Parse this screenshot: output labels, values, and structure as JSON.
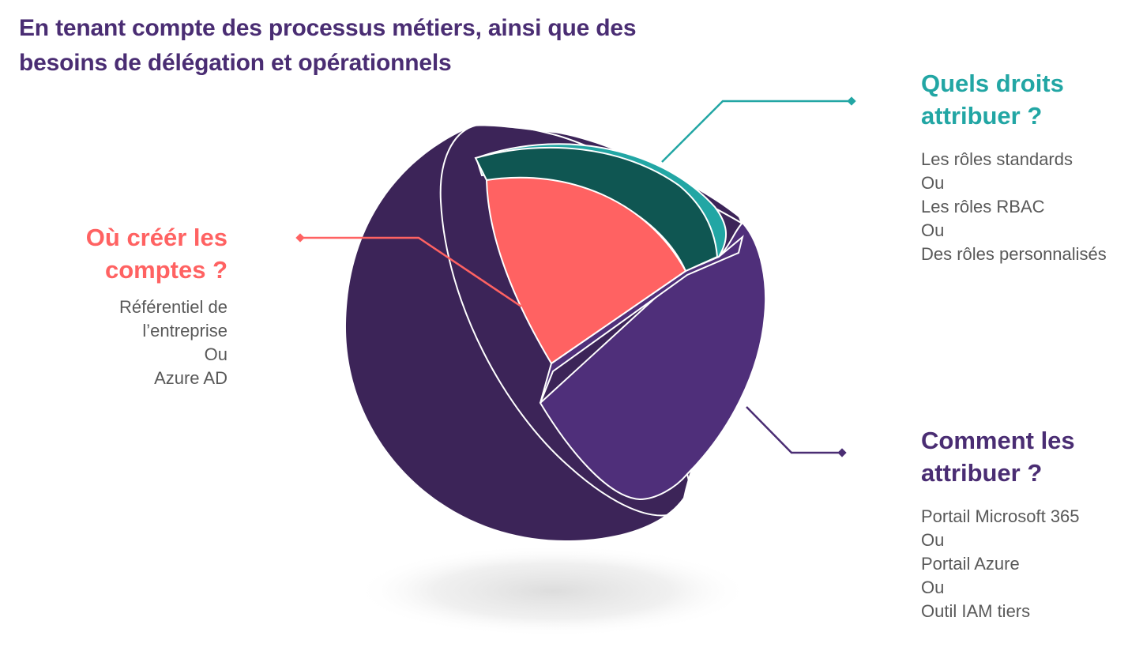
{
  "headline": {
    "line1": "En tenant compte des processus métiers, ainsi que des",
    "line2": "besoins de délégation et opérationnels"
  },
  "sections": {
    "accounts": {
      "title_line1": "Où créér les",
      "title_line2": "comptes ?",
      "options": [
        "Référentiel de",
        "l’entreprise",
        "Ou",
        "Azure AD"
      ]
    },
    "rights": {
      "title_line1": "Quels droits",
      "title_line2": "attribuer ?",
      "options": [
        "Les rôles standards",
        "Ou",
        "Les rôles RBAC",
        "Ou",
        "Des rôles personnalisés"
      ]
    },
    "assign": {
      "title_line1": "Comment les",
      "title_line2": "attribuer ?",
      "options": [
        "Portail Microsoft 365",
        "Ou",
        "Portail Azure",
        "Ou",
        "Outil IAM tiers"
      ]
    }
  },
  "colors": {
    "headline": "#4a2d73",
    "coral": "#ff6262",
    "teal": "#22a6a4",
    "dark_teal": "#0f5652",
    "dark_purple": "#3c2458",
    "mid_purple": "#4f2f7a",
    "body_text": "#595959"
  }
}
